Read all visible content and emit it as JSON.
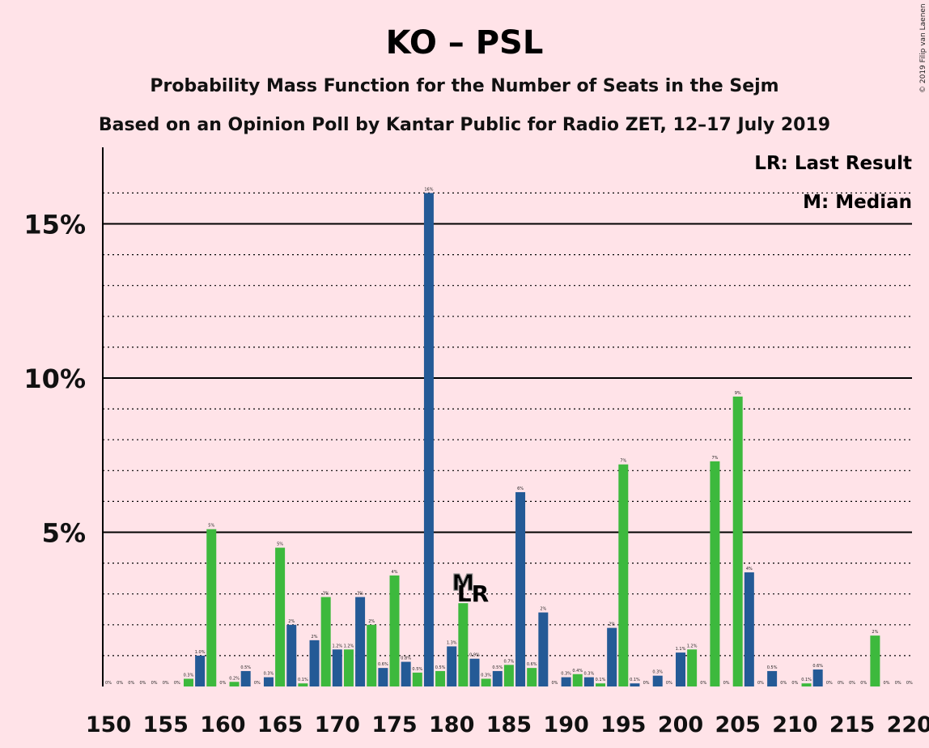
{
  "chart_data": {
    "type": "bar",
    "title": "KO – PSL",
    "subtitle": "Probability Mass Function for the Number of Seats in the Sejm",
    "subtitle2": "Based on an Opinion Poll by Kantar Public for Radio ZET, 12–17 July 2019",
    "credit": "© 2019 Filip van Laenen",
    "legend": {
      "lr": "LR: Last Result",
      "m": "M: Median",
      "position": "top-right"
    },
    "markers": {
      "lr_label": "LR",
      "lr_seat": 182,
      "m_label": "M",
      "median_seat": 181
    },
    "colors": {
      "blue": "#245A96",
      "green": "#3DB93D",
      "background": "#FFE3E8"
    },
    "x": [
      150,
      151,
      152,
      153,
      154,
      155,
      156,
      157,
      158,
      159,
      160,
      161,
      162,
      163,
      164,
      165,
      166,
      167,
      168,
      169,
      170,
      171,
      172,
      173,
      174,
      175,
      176,
      177,
      178,
      179,
      180,
      181,
      182,
      183,
      184,
      185,
      186,
      187,
      188,
      189,
      190,
      191,
      192,
      193,
      194,
      195,
      196,
      197,
      198,
      199,
      200,
      201,
      202,
      203,
      204,
      205,
      206,
      207,
      208,
      209,
      210,
      211,
      212,
      213,
      214,
      215,
      216,
      217,
      218,
      219,
      220
    ],
    "values": [
      0,
      0,
      0,
      0,
      0,
      0,
      0,
      0.25,
      1.0,
      5.1,
      0,
      0.15,
      0.5,
      0,
      0.3,
      4.5,
      2.0,
      0.1,
      1.5,
      2.9,
      1.2,
      1.2,
      2.9,
      2.0,
      0.6,
      3.6,
      0.8,
      0.45,
      16.0,
      0.5,
      1.3,
      2.7,
      0.9,
      0.25,
      0.5,
      0.7,
      6.3,
      0.6,
      2.4,
      0,
      0.3,
      0.4,
      0.3,
      0.1,
      1.9,
      7.2,
      0.1,
      0,
      0.35,
      0,
      1.1,
      1.2,
      0,
      7.3,
      0,
      9.4,
      3.7,
      0,
      0.5,
      0,
      0,
      0.1,
      0.55,
      0,
      0,
      0,
      0,
      1.65,
      0,
      0,
      0
    ],
    "labels": [
      "0%",
      "0%",
      "0%",
      "0%",
      "0%",
      "0%",
      "0%",
      "0.3%",
      "1.0%",
      "5%",
      "0%",
      "0.2%",
      "0.5%",
      "0%",
      "0.3%",
      "5%",
      "2%",
      "0.1%",
      "2%",
      "3%",
      "1.2%",
      "1.2%",
      "3%",
      "2%",
      "0.6%",
      "4%",
      "0.8%",
      "0.5%",
      "16%",
      "0.5%",
      "1.3%",
      "3%",
      "0.9%",
      "0.3%",
      "0.5%",
      "0.7%",
      "6%",
      "0.6%",
      "2%",
      "0%",
      "0.3%",
      "0.4%",
      "0.3%",
      "0.1%",
      "2%",
      "7%",
      "0.1%",
      "0%",
      "0.3%",
      "0%",
      "1.1%",
      "1.2%",
      "0%",
      "7%",
      "0%",
      "9%",
      "4%",
      "0%",
      "0.5%",
      "0%",
      "0%",
      "0.1%",
      "0.6%",
      "0%",
      "0%",
      "0%",
      "0%",
      "2%",
      "0%",
      "0%",
      "0%"
    ],
    "x_ticks": [
      "150",
      "155",
      "160",
      "165",
      "170",
      "175",
      "180",
      "185",
      "190",
      "195",
      "200",
      "205",
      "210",
      "215",
      "220"
    ],
    "y_ticks": [
      "5%",
      "10%",
      "15%"
    ],
    "ylim": [
      0,
      17.5
    ],
    "xlim": [
      150,
      220
    ],
    "grid": "dotted every 1%, solid every 5%"
  }
}
